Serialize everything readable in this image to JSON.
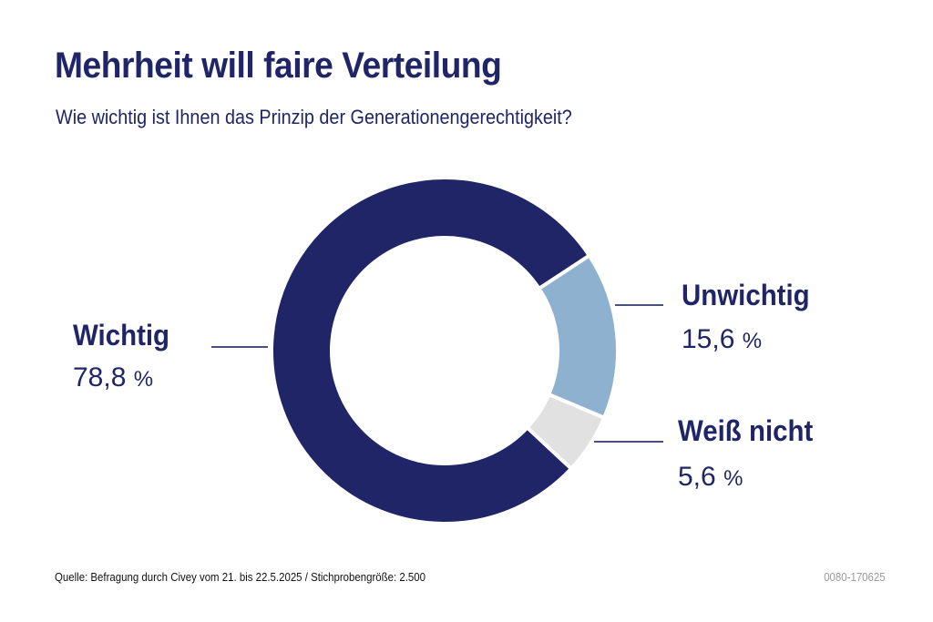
{
  "header": {
    "title": "Mehrheit will faire Verteilung",
    "subtitle": "Wie wichtig ist Ihnen das Prinzip der Generationengerechtigkeit?"
  },
  "chart_data": {
    "type": "pie",
    "variant": "donut",
    "title": "Mehrheit will faire Verteilung",
    "subtitle": "Wie wichtig ist Ihnen das Prinzip der Generationengerechtigkeit?",
    "unit": "%",
    "slices": [
      {
        "label": "Wichtig",
        "value": 78.8,
        "display": "78,8",
        "color": "#1f2566"
      },
      {
        "label": "Unwichtig",
        "value": 15.6,
        "display": "15,6",
        "color": "#8fb1d0"
      },
      {
        "label": "Weiß nicht",
        "value": 5.6,
        "display": "5,6",
        "color": "#e1e1e1"
      }
    ],
    "legend": "none (direct labels with leader lines)"
  },
  "footer": {
    "source": "Quelle: Befragung durch Civey vom 21. bis 22.5.2025 / Stichprobengröße: 2.500",
    "code": "0080-170625"
  },
  "colors": {
    "text": "#1f2566",
    "leader_line": "#4a4f86",
    "separator": "#ffffff",
    "code_text": "#9a9a9a"
  }
}
